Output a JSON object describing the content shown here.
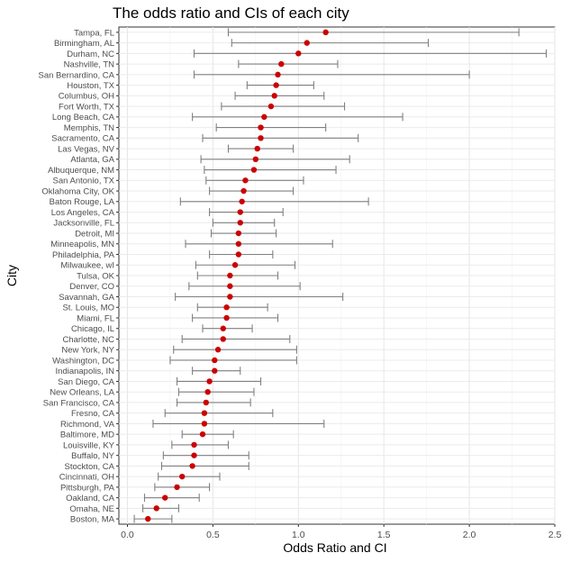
{
  "chart_data": {
    "type": "scatter",
    "title": "The odds ratio and CIs of each city",
    "xlabel": "Odds Ratio and CI",
    "ylabel": "City",
    "xlim": [
      -0.05,
      2.5
    ],
    "xticks": [
      0.0,
      0.5,
      1.0,
      1.5,
      2.0,
      2.5
    ],
    "xtick_labels": [
      "0.0",
      "0.5",
      "1.0",
      "1.5",
      "2.0",
      "2.5"
    ],
    "grid": true,
    "point_color": "#cc0000",
    "errorbar_color": "#808080",
    "cities": [
      {
        "city": "Tampa, FL",
        "or": 1.16,
        "lo": 0.59,
        "hi": 2.29
      },
      {
        "city": "Birmingham, AL",
        "or": 1.05,
        "lo": 0.61,
        "hi": 1.76
      },
      {
        "city": "Durham, NC",
        "or": 1.0,
        "lo": 0.39,
        "hi": 2.45
      },
      {
        "city": "Nashville, TN",
        "or": 0.9,
        "lo": 0.65,
        "hi": 1.23
      },
      {
        "city": "San Bernardino, CA",
        "or": 0.88,
        "lo": 0.39,
        "hi": 2.0
      },
      {
        "city": "Houston, TX",
        "or": 0.87,
        "lo": 0.7,
        "hi": 1.09
      },
      {
        "city": "Columbus, OH",
        "or": 0.86,
        "lo": 0.63,
        "hi": 1.15
      },
      {
        "city": "Fort Worth, TX",
        "or": 0.84,
        "lo": 0.55,
        "hi": 1.27
      },
      {
        "city": "Long Beach, CA",
        "or": 0.8,
        "lo": 0.38,
        "hi": 1.61
      },
      {
        "city": "Memphis, TN",
        "or": 0.78,
        "lo": 0.52,
        "hi": 1.16
      },
      {
        "city": "Sacramento, CA",
        "or": 0.78,
        "lo": 0.44,
        "hi": 1.35
      },
      {
        "city": "Las Vegas, NV",
        "or": 0.76,
        "lo": 0.59,
        "hi": 0.97
      },
      {
        "city": "Atlanta, GA",
        "or": 0.75,
        "lo": 0.43,
        "hi": 1.3
      },
      {
        "city": "Albuquerque, NM",
        "or": 0.74,
        "lo": 0.45,
        "hi": 1.22
      },
      {
        "city": "San Antonio, TX",
        "or": 0.69,
        "lo": 0.46,
        "hi": 1.03
      },
      {
        "city": "Oklahoma City, OK",
        "or": 0.68,
        "lo": 0.48,
        "hi": 0.97
      },
      {
        "city": "Baton Rouge, LA",
        "or": 0.67,
        "lo": 0.31,
        "hi": 1.41
      },
      {
        "city": "Los Angeles, CA",
        "or": 0.66,
        "lo": 0.48,
        "hi": 0.91
      },
      {
        "city": "Jacksonville, FL",
        "or": 0.66,
        "lo": 0.5,
        "hi": 0.86
      },
      {
        "city": "Detroit, MI",
        "or": 0.65,
        "lo": 0.49,
        "hi": 0.87
      },
      {
        "city": "Minneapolis, MN",
        "or": 0.65,
        "lo": 0.34,
        "hi": 1.2
      },
      {
        "city": "Philadelphia, PA",
        "or": 0.65,
        "lo": 0.48,
        "hi": 0.85
      },
      {
        "city": "Milwaukee, wI",
        "or": 0.63,
        "lo": 0.4,
        "hi": 0.98
      },
      {
        "city": "Tulsa, OK",
        "or": 0.6,
        "lo": 0.41,
        "hi": 0.88
      },
      {
        "city": "Denver, CO",
        "or": 0.6,
        "lo": 0.36,
        "hi": 1.01
      },
      {
        "city": "Savannah, GA",
        "or": 0.6,
        "lo": 0.28,
        "hi": 1.26
      },
      {
        "city": "St. Louis, MO",
        "or": 0.58,
        "lo": 0.41,
        "hi": 0.82
      },
      {
        "city": "Miami, FL",
        "or": 0.58,
        "lo": 0.38,
        "hi": 0.88
      },
      {
        "city": "Chicago, IL",
        "or": 0.56,
        "lo": 0.44,
        "hi": 0.73
      },
      {
        "city": "Charlotte, NC",
        "or": 0.56,
        "lo": 0.32,
        "hi": 0.95
      },
      {
        "city": "New York, NY",
        "or": 0.53,
        "lo": 0.27,
        "hi": 0.99
      },
      {
        "city": "Washington, DC",
        "or": 0.51,
        "lo": 0.25,
        "hi": 0.99
      },
      {
        "city": "Indianapolis, IN",
        "or": 0.51,
        "lo": 0.38,
        "hi": 0.66
      },
      {
        "city": "San Diego, CA",
        "or": 0.48,
        "lo": 0.29,
        "hi": 0.78
      },
      {
        "city": "New Orleans, LA",
        "or": 0.47,
        "lo": 0.3,
        "hi": 0.74
      },
      {
        "city": "San Francisco, CA",
        "or": 0.46,
        "lo": 0.29,
        "hi": 0.72
      },
      {
        "city": "Fresno, CA",
        "or": 0.45,
        "lo": 0.22,
        "hi": 0.85
      },
      {
        "city": "Richmond, VA",
        "or": 0.45,
        "lo": 0.15,
        "hi": 1.15
      },
      {
        "city": "Baltimore, MD",
        "or": 0.44,
        "lo": 0.32,
        "hi": 0.62
      },
      {
        "city": "Louisville, KY",
        "or": 0.39,
        "lo": 0.26,
        "hi": 0.59
      },
      {
        "city": "Buffalo, NY",
        "or": 0.39,
        "lo": 0.21,
        "hi": 0.71
      },
      {
        "city": "Stockton, CA",
        "or": 0.38,
        "lo": 0.2,
        "hi": 0.71
      },
      {
        "city": "Cincinnati, OH",
        "or": 0.32,
        "lo": 0.18,
        "hi": 0.54
      },
      {
        "city": "Pittsburgh, PA",
        "or": 0.29,
        "lo": 0.16,
        "hi": 0.48
      },
      {
        "city": "Oakland, CA",
        "or": 0.22,
        "lo": 0.1,
        "hi": 0.42
      },
      {
        "city": "Omaha, NE",
        "or": 0.17,
        "lo": 0.09,
        "hi": 0.3
      },
      {
        "city": "Boston, MA",
        "or": 0.12,
        "lo": 0.04,
        "hi": 0.26
      }
    ]
  }
}
